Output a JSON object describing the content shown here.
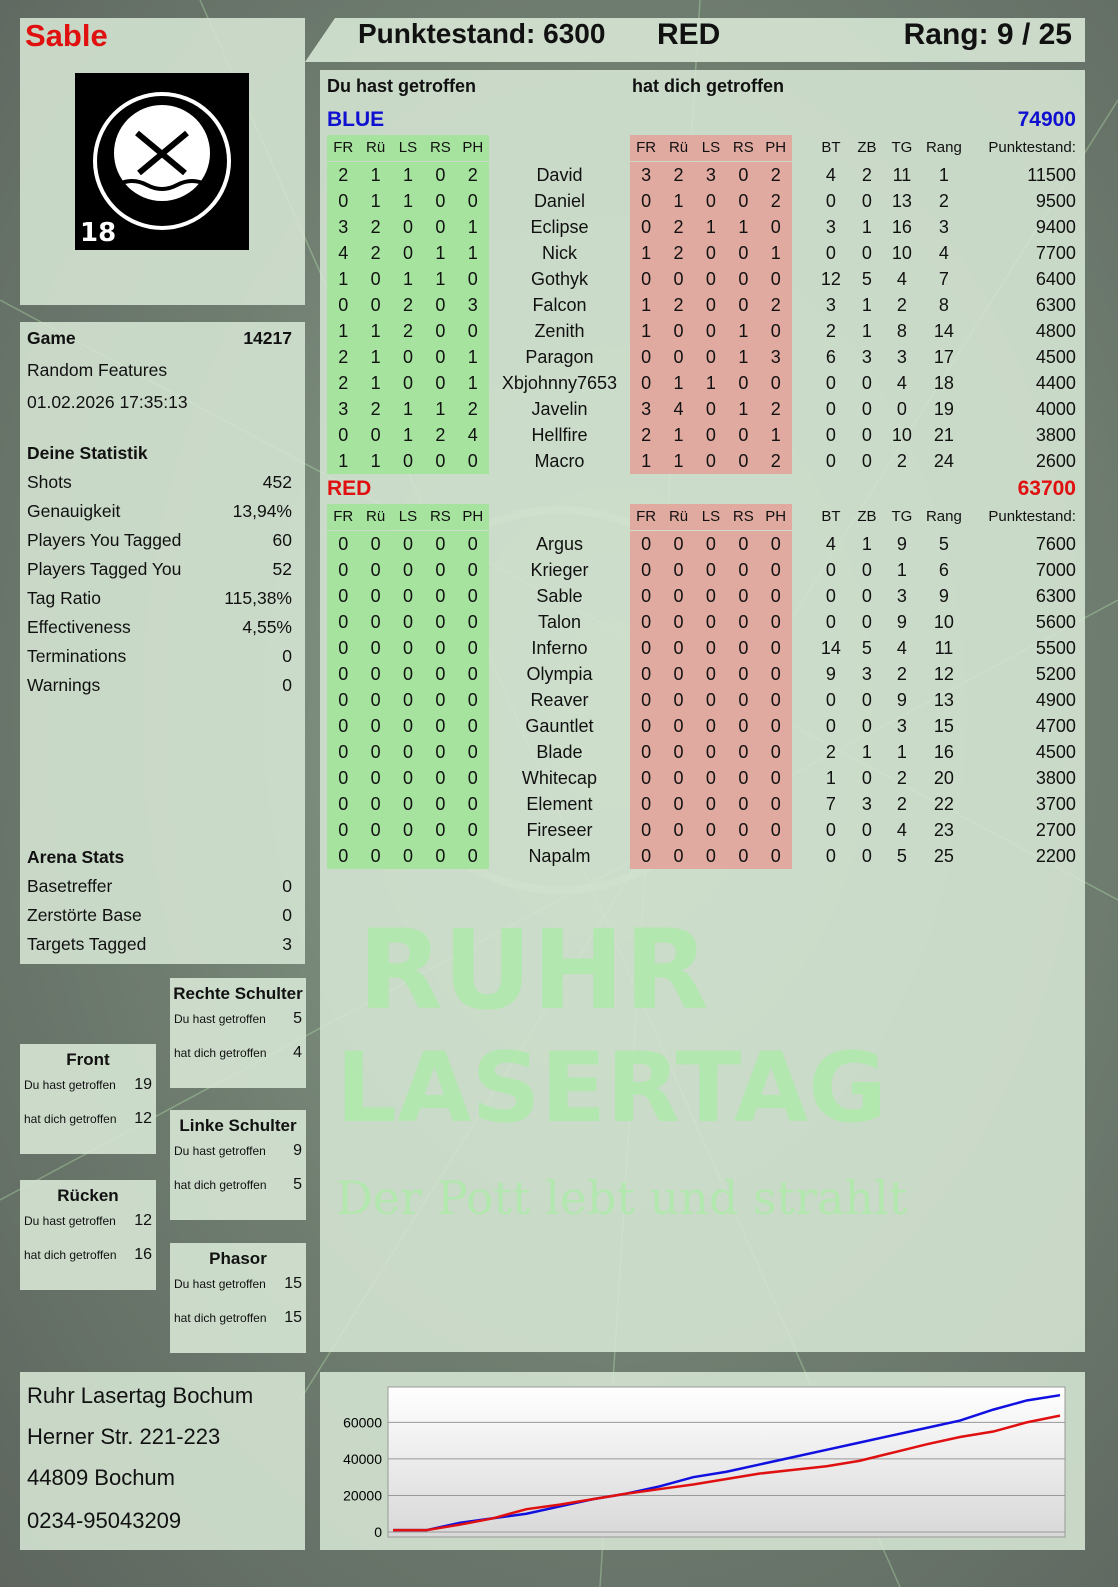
{
  "player": {
    "name": "Sable",
    "logo_text": "RUHR LASERTAG",
    "logo_number": "18"
  },
  "header": {
    "score": "Punktestand: 6300",
    "team": "RED",
    "rank": "Rang: 9 / 25"
  },
  "game": {
    "label": "Game",
    "id": "14217",
    "mode": "Random Features",
    "datetime": "01.02.2026 17:35:13"
  },
  "stats": {
    "title": "Deine Statistik",
    "items": [
      {
        "label": "Shots",
        "value": "452"
      },
      {
        "label": "Genauigkeit",
        "value": "13,94%"
      },
      {
        "label": "Players You Tagged",
        "value": "60"
      },
      {
        "label": "Players Tagged You",
        "value": "52"
      },
      {
        "label": "Tag Ratio",
        "value": "115,38%"
      },
      {
        "label": "Effectiveness",
        "value": "4,55%"
      },
      {
        "label": "Terminations",
        "value": "0"
      },
      {
        "label": "Warnings",
        "value": "0"
      }
    ]
  },
  "arena": {
    "title": "Arena Stats",
    "items": [
      {
        "label": "Basetreffer",
        "value": "0"
      },
      {
        "label": "Zerstörte Base",
        "value": "0"
      },
      {
        "label": "Targets Tagged",
        "value": "3"
      }
    ]
  },
  "zones": [
    {
      "title": "Rechte Schulter",
      "hit_label": "Du hast getroffen",
      "hit": "5",
      "got_label": "hat dich getroffen",
      "got": "4"
    },
    {
      "title": "Front",
      "hit_label": "Du hast getroffen",
      "hit": "19",
      "got_label": "hat dich getroffen",
      "got": "12"
    },
    {
      "title": "Linke Schulter",
      "hit_label": "Du hast getroffen",
      "hit": "9",
      "got_label": "hat dich getroffen",
      "got": "5"
    },
    {
      "title": "Rücken",
      "hit_label": "Du hast getroffen",
      "hit": "12",
      "got_label": "hat dich getroffen",
      "got": "16"
    },
    {
      "title": "Phasor",
      "hit_label": "Du hast getroffen",
      "hit": "15",
      "got_label": "hat dich getroffen",
      "got": "15"
    }
  ],
  "table": {
    "you_hit": "Du hast getroffen",
    "hit_you": "hat dich getroffen",
    "columns": [
      "FR",
      "Rü",
      "LS",
      "RS",
      "PH",
      "",
      "FR",
      "Rü",
      "LS",
      "RS",
      "PH",
      "",
      "BT",
      "ZB",
      "TG",
      "Rang",
      "Punktestand:"
    ],
    "teams": [
      {
        "name": "BLUE",
        "score": "74900",
        "color": "#1010d0",
        "players": [
          [
            "2",
            "1",
            "1",
            "0",
            "2",
            "David",
            "3",
            "2",
            "3",
            "0",
            "2",
            "4",
            "2",
            "11",
            "1",
            "11500"
          ],
          [
            "0",
            "1",
            "1",
            "0",
            "0",
            "Daniel",
            "0",
            "1",
            "0",
            "0",
            "2",
            "0",
            "0",
            "13",
            "2",
            "9500"
          ],
          [
            "3",
            "2",
            "0",
            "0",
            "1",
            "Eclipse",
            "0",
            "2",
            "1",
            "1",
            "0",
            "3",
            "1",
            "16",
            "3",
            "9400"
          ],
          [
            "4",
            "2",
            "0",
            "1",
            "1",
            "Nick",
            "1",
            "2",
            "0",
            "0",
            "1",
            "0",
            "0",
            "10",
            "4",
            "7700"
          ],
          [
            "1",
            "0",
            "1",
            "1",
            "0",
            "Gothyk",
            "0",
            "0",
            "0",
            "0",
            "0",
            "12",
            "5",
            "4",
            "7",
            "6400"
          ],
          [
            "0",
            "0",
            "2",
            "0",
            "3",
            "Falcon",
            "1",
            "2",
            "0",
            "0",
            "2",
            "3",
            "1",
            "2",
            "8",
            "6300"
          ],
          [
            "1",
            "1",
            "2",
            "0",
            "0",
            "Zenith",
            "1",
            "0",
            "0",
            "1",
            "0",
            "2",
            "1",
            "8",
            "14",
            "4800"
          ],
          [
            "2",
            "1",
            "0",
            "0",
            "1",
            "Paragon",
            "0",
            "0",
            "0",
            "1",
            "3",
            "6",
            "3",
            "3",
            "17",
            "4500"
          ],
          [
            "2",
            "1",
            "0",
            "0",
            "1",
            "Xbjohnny7653",
            "0",
            "1",
            "1",
            "0",
            "0",
            "0",
            "0",
            "4",
            "18",
            "4400"
          ],
          [
            "3",
            "2",
            "1",
            "1",
            "2",
            "Javelin",
            "3",
            "4",
            "0",
            "1",
            "2",
            "0",
            "0",
            "0",
            "19",
            "4000"
          ],
          [
            "0",
            "0",
            "1",
            "2",
            "4",
            "Hellfire",
            "2",
            "1",
            "0",
            "0",
            "1",
            "0",
            "0",
            "10",
            "21",
            "3800"
          ],
          [
            "1",
            "1",
            "0",
            "0",
            "0",
            "Macro",
            "1",
            "1",
            "0",
            "0",
            "2",
            "0",
            "0",
            "2",
            "24",
            "2600"
          ]
        ]
      },
      {
        "name": "RED",
        "score": "63700",
        "color": "#e01010",
        "players": [
          [
            "0",
            "0",
            "0",
            "0",
            "0",
            "Argus",
            "0",
            "0",
            "0",
            "0",
            "0",
            "4",
            "1",
            "9",
            "5",
            "7600"
          ],
          [
            "0",
            "0",
            "0",
            "0",
            "0",
            "Krieger",
            "0",
            "0",
            "0",
            "0",
            "0",
            "0",
            "0",
            "1",
            "6",
            "7000"
          ],
          [
            "0",
            "0",
            "0",
            "0",
            "0",
            "Sable",
            "0",
            "0",
            "0",
            "0",
            "0",
            "0",
            "0",
            "3",
            "9",
            "6300"
          ],
          [
            "0",
            "0",
            "0",
            "0",
            "0",
            "Talon",
            "0",
            "0",
            "0",
            "0",
            "0",
            "0",
            "0",
            "9",
            "10",
            "5600"
          ],
          [
            "0",
            "0",
            "0",
            "0",
            "0",
            "Inferno",
            "0",
            "0",
            "0",
            "0",
            "0",
            "14",
            "5",
            "4",
            "11",
            "5500"
          ],
          [
            "0",
            "0",
            "0",
            "0",
            "0",
            "Olympia",
            "0",
            "0",
            "0",
            "0",
            "0",
            "9",
            "3",
            "2",
            "12",
            "5200"
          ],
          [
            "0",
            "0",
            "0",
            "0",
            "0",
            "Reaver",
            "0",
            "0",
            "0",
            "0",
            "0",
            "0",
            "0",
            "9",
            "13",
            "4900"
          ],
          [
            "0",
            "0",
            "0",
            "0",
            "0",
            "Gauntlet",
            "0",
            "0",
            "0",
            "0",
            "0",
            "0",
            "0",
            "3",
            "15",
            "4700"
          ],
          [
            "0",
            "0",
            "0",
            "0",
            "0",
            "Blade",
            "0",
            "0",
            "0",
            "0",
            "0",
            "2",
            "1",
            "1",
            "16",
            "4500"
          ],
          [
            "0",
            "0",
            "0",
            "0",
            "0",
            "Whitecap",
            "0",
            "0",
            "0",
            "0",
            "0",
            "1",
            "0",
            "2",
            "20",
            "3800"
          ],
          [
            "0",
            "0",
            "0",
            "0",
            "0",
            "Element",
            "0",
            "0",
            "0",
            "0",
            "0",
            "7",
            "3",
            "2",
            "22",
            "3700"
          ],
          [
            "0",
            "0",
            "0",
            "0",
            "0",
            "Fireseer",
            "0",
            "0",
            "0",
            "0",
            "0",
            "0",
            "0",
            "4",
            "23",
            "2700"
          ],
          [
            "0",
            "0",
            "0",
            "0",
            "0",
            "Napalm",
            "0",
            "0",
            "0",
            "0",
            "0",
            "0",
            "0",
            "5",
            "25",
            "2200"
          ]
        ]
      }
    ]
  },
  "watermark": {
    "line1": "RUHR",
    "line2": "LASERTAG",
    "slogan": "Der Pott lebt und strahlt"
  },
  "address": [
    "Ruhr Lasertag Bochum",
    "Herner Str. 221-223",
    "44809 Bochum",
    "0234-95043209"
  ],
  "chart_data": {
    "type": "line",
    "title": "",
    "xlabel": "",
    "ylabel": "",
    "ylim": [
      0,
      75000
    ],
    "yticks": [
      0,
      20000,
      40000,
      60000
    ],
    "grid": true,
    "series": [
      {
        "team": "BLUE",
        "color": "#1010e0",
        "values": [
          1000,
          1000,
          5000,
          7500,
          10000,
          14000,
          18000,
          21000,
          25000,
          30000,
          33000,
          37000,
          41000,
          45000,
          49000,
          53000,
          57000,
          61000,
          67000,
          72000,
          74900
        ]
      },
      {
        "team": "RED",
        "color": "#e01010",
        "values": [
          1000,
          1000,
          4000,
          7500,
          12500,
          15000,
          18000,
          21000,
          23500,
          26000,
          29000,
          32000,
          34000,
          36000,
          39000,
          43500,
          48000,
          52000,
          55000,
          60000,
          63700
        ]
      }
    ]
  }
}
